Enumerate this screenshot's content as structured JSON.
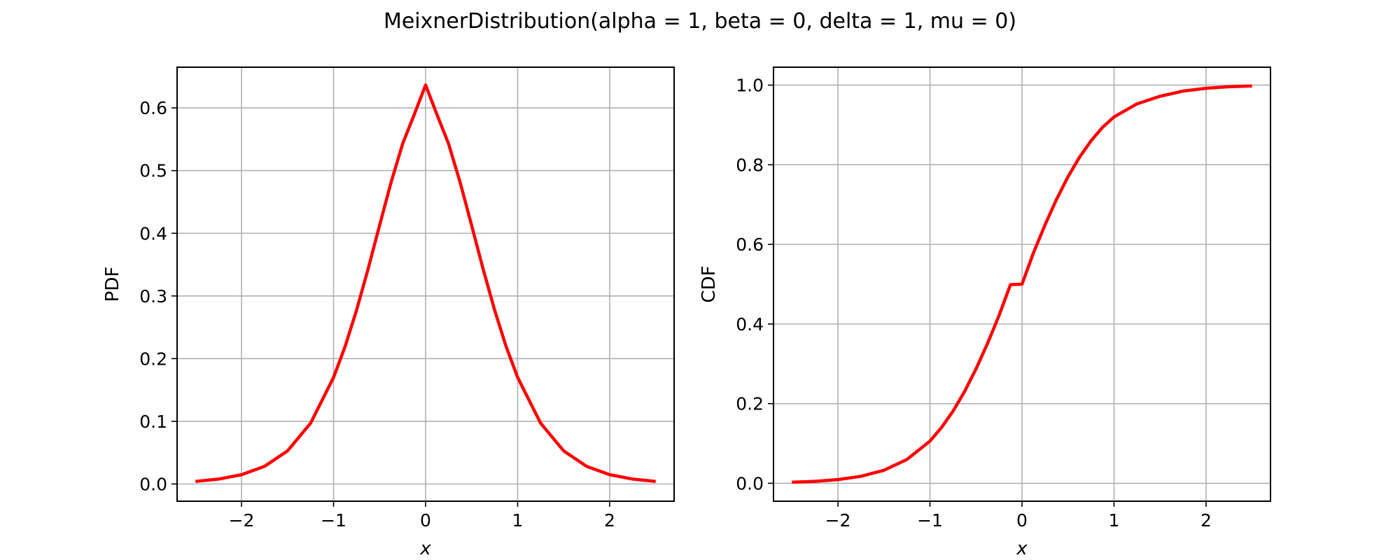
{
  "figure": {
    "suptitle": "MeixnerDistribution(alpha = 1, beta = 0, delta = 1, mu = 0)"
  },
  "chart_data": [
    {
      "type": "line",
      "title": "",
      "xlabel": "x",
      "ylabel": "PDF",
      "xlim": [
        -2.7,
        2.7
      ],
      "ylim": [
        -0.0275,
        0.665
      ],
      "xticks": [
        -2,
        -1,
        0,
        1,
        2
      ],
      "xtick_labels": [
        "−2",
        "−1",
        "0",
        "1",
        "2"
      ],
      "yticks": [
        0.0,
        0.1,
        0.2,
        0.3,
        0.4,
        0.5,
        0.6
      ],
      "ytick_labels": [
        "0.0",
        "0.1",
        "0.2",
        "0.3",
        "0.4",
        "0.5",
        "0.6"
      ],
      "grid": true,
      "series": [
        {
          "color": "#ff0000",
          "x": [
            -2.5,
            -2.25,
            -2.0,
            -1.75,
            -1.5,
            -1.25,
            -1.0,
            -0.875,
            -0.75,
            -0.625,
            -0.5,
            -0.375,
            -0.25,
            -0.125,
            0.0,
            0.125,
            0.25,
            0.375,
            0.5,
            0.625,
            0.75,
            0.875,
            1.0,
            1.25,
            1.5,
            1.75,
            2.0,
            2.25,
            2.5
          ],
          "y": [
            0.0041,
            0.0078,
            0.0148,
            0.0281,
            0.0528,
            0.0969,
            0.17,
            0.2192,
            0.2774,
            0.3429,
            0.4126,
            0.4813,
            0.5426,
            0.5889,
            0.6366,
            0.5889,
            0.5426,
            0.4813,
            0.4126,
            0.3429,
            0.2774,
            0.2192,
            0.17,
            0.0969,
            0.0528,
            0.0281,
            0.0148,
            0.0078,
            0.0041
          ]
        }
      ]
    },
    {
      "type": "line",
      "title": "",
      "xlabel": "x",
      "ylabel": "CDF",
      "xlim": [
        -2.7,
        2.7
      ],
      "ylim": [
        -0.045,
        1.045
      ],
      "xticks": [
        -2,
        -1,
        0,
        1,
        2
      ],
      "xtick_labels": [
        "−2",
        "−1",
        "0",
        "1",
        "2"
      ],
      "yticks": [
        0.0,
        0.2,
        0.4,
        0.6,
        0.8,
        1.0
      ],
      "ytick_labels": [
        "0.0",
        "0.2",
        "0.4",
        "0.6",
        "0.8",
        "1.0"
      ],
      "grid": true,
      "series": [
        {
          "color": "#ff0000",
          "x": [
            -2.5,
            -2.25,
            -2.0,
            -1.75,
            -1.5,
            -1.25,
            -1.0,
            -0.875,
            -0.75,
            -0.625,
            -0.5,
            -0.375,
            -0.25,
            -0.125,
            0.0,
            0.125,
            0.25,
            0.375,
            0.5,
            0.625,
            0.75,
            0.875,
            1.0,
            1.25,
            1.5,
            1.75,
            2.0,
            2.25,
            2.5
          ],
          "y": [
            0.0026,
            0.0049,
            0.0093,
            0.0175,
            0.0327,
            0.0598,
            0.106,
            0.14,
            0.181,
            0.23,
            0.287,
            0.351,
            0.421,
            0.499,
            0.5,
            0.579,
            0.649,
            0.713,
            0.77,
            0.819,
            0.86,
            0.894,
            0.92,
            0.953,
            0.972,
            0.985,
            0.992,
            0.996,
            0.998
          ]
        }
      ]
    }
  ]
}
